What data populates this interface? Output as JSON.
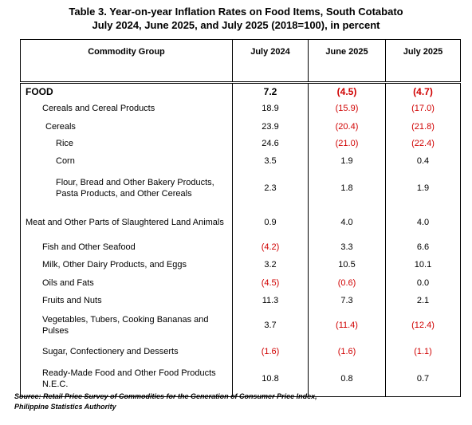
{
  "title": {
    "line1": "Table 3. Year-on-year Inflation Rates on Food Items, South Cotabato",
    "line2": "July 2024, June 2025, and July 2025 (2018=100), in percent"
  },
  "table": {
    "header": [
      "Commodity Group",
      "July 2024",
      "June 2025",
      "July 2025"
    ],
    "rows": [
      [
        "FOOD",
        "7.2",
        "(4.5)",
        "(4.7)"
      ],
      [
        "Cereals and Cereal Products",
        "18.9",
        "(15.9)",
        "(17.0)"
      ],
      [
        "Cereals",
        "23.9",
        "(20.4)",
        "(21.8)"
      ],
      [
        "Rice",
        "24.6",
        "(21.0)",
        "(22.4)"
      ],
      [
        "Corn",
        "3.5",
        "1.9",
        "0.4"
      ],
      [
        "Flour, Bread and Other Bakery Products, Pasta Products, and Other Cereals",
        "2.3",
        "1.8",
        "1.9"
      ],
      [
        "Meat and Other Parts of Slaughtered Land Animals",
        "0.9",
        "4.0",
        "4.0"
      ],
      [
        "Fish and Other Seafood",
        "(4.2)",
        "3.3",
        "6.6"
      ],
      [
        "Milk, Other Dairy Products, and Eggs",
        "3.2",
        "10.5",
        "10.1"
      ],
      [
        "Oils and Fats",
        "(4.5)",
        "(0.6)",
        "0.0"
      ],
      [
        "Fruits and Nuts",
        "11.3",
        "7.3",
        "2.1"
      ],
      [
        "Vegetables, Tubers, Cooking Bananas and Pulses",
        "3.7",
        "(11.4)",
        "(12.4)"
      ],
      [
        "Sugar, Confectionery and Desserts",
        "(1.6)",
        "(1.6)",
        "(1.1)"
      ],
      [
        "Ready-Made Food and Other Food Products N.E.C.",
        "10.8",
        "0.8",
        "0.7"
      ]
    ]
  },
  "source": {
    "line1": "Source: Retail Price Survey of Commodities for the Generation of Consumer Price Index,",
    "line2": "Philippine Statistics Authority"
  }
}
